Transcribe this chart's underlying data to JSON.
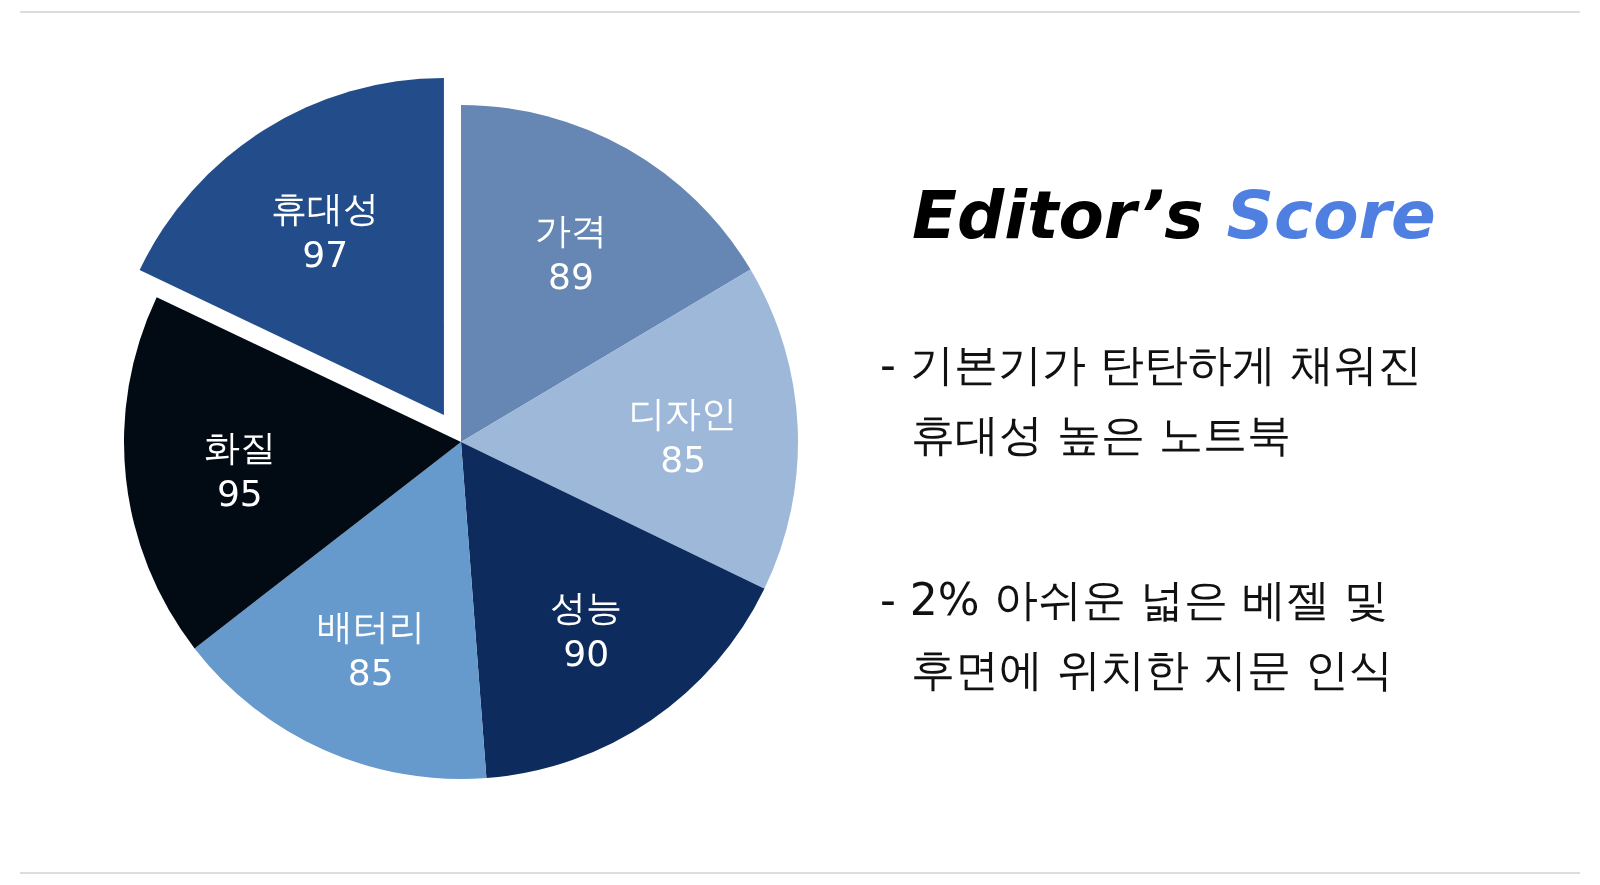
{
  "chart_data": {
    "type": "pie",
    "title": "Editor’s Score",
    "categories": [
      "가격",
      "디자인",
      "성능",
      "배터리",
      "화질",
      "휴대성"
    ],
    "values": [
      89,
      85,
      90,
      85,
      95,
      97
    ],
    "colors": [
      "#6687b4",
      "#9db8d8",
      "#0e2b5e",
      "#6699cc",
      "#020a14",
      "#234d8a"
    ],
    "data_labels": true,
    "annotations": [
      "- 기본기가 탄탄하게 채워진\n휴대성 높은 노트북",
      "- 2% 아쉬운 넓은 베젤 및\n후면에 위치한 지문 인식"
    ]
  }
}
